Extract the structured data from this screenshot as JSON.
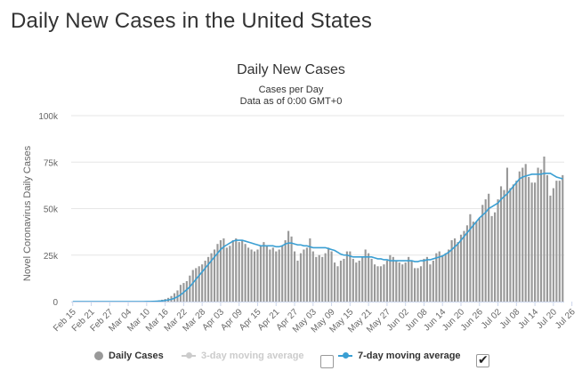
{
  "page": {
    "title": "Daily New Cases in the United States"
  },
  "chart_data": {
    "type": "bar",
    "title": "Daily New Cases",
    "subtitle_line1": "Cases per Day",
    "subtitle_line2": "Data as of 0:00 GMT+0",
    "ylabel": "Novel Coronavirus Daily Cases",
    "xlabel": "",
    "ylim": [
      0,
      100000
    ],
    "yticks": [
      0,
      25000,
      50000,
      75000,
      100000
    ],
    "ytick_labels": [
      "0",
      "25k",
      "50k",
      "75k",
      "100k"
    ],
    "xtick_labels": [
      "Feb 15",
      "Feb 21",
      "Feb 27",
      "Mar 04",
      "Mar 10",
      "Mar 16",
      "Mar 22",
      "Mar 28",
      "Apr 03",
      "Apr 09",
      "Apr 15",
      "Apr 21",
      "Apr 27",
      "May 03",
      "May 09",
      "May 15",
      "May 21",
      "May 27",
      "Jun 02",
      "Jun 08",
      "Jun 14",
      "Jun 20",
      "Jun 26",
      "Jul 02",
      "Jul 08",
      "Jul 14",
      "Jul 20",
      "Jul 26"
    ],
    "xtick_every_days": 6,
    "start_date": "Feb 15",
    "series": [
      {
        "name": "Daily Cases",
        "color": "#999999",
        "values": [
          0,
          0,
          0,
          0,
          0,
          0,
          0,
          0,
          0,
          0,
          0,
          0,
          0,
          0,
          0,
          0,
          0,
          0,
          0,
          0,
          0,
          0,
          0,
          0,
          100,
          150,
          300,
          500,
          700,
          1000,
          1400,
          2000,
          3000,
          4500,
          6000,
          9000,
          10000,
          11000,
          14000,
          17000,
          18000,
          19000,
          20000,
          22000,
          24000,
          26000,
          28000,
          31000,
          33000,
          34000,
          29000,
          30000,
          33000,
          34000,
          32000,
          33000,
          31000,
          29000,
          28000,
          27000,
          28000,
          30000,
          32000,
          30000,
          28000,
          29000,
          27000,
          28000,
          30000,
          33000,
          38000,
          35000,
          27000,
          22000,
          26000,
          28000,
          29000,
          34000,
          27000,
          24000,
          25000,
          24000,
          26000,
          29000,
          27000,
          21000,
          19000,
          22000,
          23000,
          27000,
          27000,
          23000,
          21000,
          22000,
          24000,
          28000,
          26000,
          23000,
          20000,
          19000,
          19000,
          20000,
          22000,
          25000,
          24000,
          22000,
          21000,
          20000,
          21000,
          24000,
          22000,
          18000,
          18000,
          19000,
          23000,
          24000,
          20000,
          22000,
          26000,
          27000,
          25000,
          26000,
          28000,
          33000,
          34000,
          32000,
          36000,
          38000,
          41000,
          47000,
          43000,
          43000,
          45000,
          52000,
          55000,
          58000,
          46000,
          48000,
          55000,
          62000,
          60000,
          72000,
          61000,
          63000,
          65000,
          70000,
          72000,
          74000,
          67000,
          64000,
          64000,
          72000,
          71000,
          78000,
          68000,
          57000,
          61000,
          65000,
          65000,
          68000
        ]
      },
      {
        "name": "3-day moving average",
        "color": "#cccccc",
        "enabled": false
      },
      {
        "name": "7-day moving average",
        "color": "#3a9fd3",
        "enabled": true,
        "values": [
          0,
          0,
          0,
          0,
          0,
          0,
          0,
          0,
          0,
          0,
          0,
          0,
          0,
          0,
          0,
          0,
          0,
          0,
          0,
          0,
          0,
          0,
          0,
          0,
          20,
          40,
          80,
          150,
          250,
          400,
          600,
          900,
          1200,
          1800,
          2600,
          3600,
          5000,
          6400,
          8000,
          10000,
          12000,
          14000,
          16000,
          18000,
          20000,
          22000,
          24000,
          26000,
          28000,
          29500,
          30500,
          31500,
          32500,
          33000,
          33000,
          33000,
          32500,
          32000,
          31500,
          31000,
          30500,
          30000,
          30000,
          30000,
          30000,
          30000,
          29500,
          29500,
          30000,
          31000,
          31500,
          31500,
          31000,
          30500,
          30500,
          30000,
          30000,
          29500,
          29000,
          29000,
          29000,
          29000,
          29000,
          28500,
          28000,
          27500,
          26500,
          25500,
          25000,
          25000,
          24500,
          24000,
          24000,
          24000,
          24000,
          24000,
          24000,
          24000,
          23500,
          23000,
          23000,
          22500,
          22500,
          22000,
          22000,
          22000,
          22000,
          22000,
          22000,
          22000,
          22000,
          21500,
          21500,
          22000,
          22000,
          22500,
          22500,
          23000,
          23500,
          24000,
          24500,
          25500,
          26500,
          28000,
          29500,
          31000,
          33000,
          35000,
          37000,
          39000,
          41000,
          43000,
          45000,
          46500,
          48000,
          50000,
          51000,
          52000,
          53000,
          55000,
          56500,
          58000,
          60000,
          62000,
          64000,
          66000,
          67000,
          67500,
          68000,
          68500,
          68500,
          68500,
          68500,
          69000,
          69000,
          69000,
          68000,
          67000,
          66500,
          66000
        ]
      }
    ],
    "legend": {
      "placement": "bottom-center",
      "checkbox_3day": false,
      "checkbox_7day": true
    }
  }
}
